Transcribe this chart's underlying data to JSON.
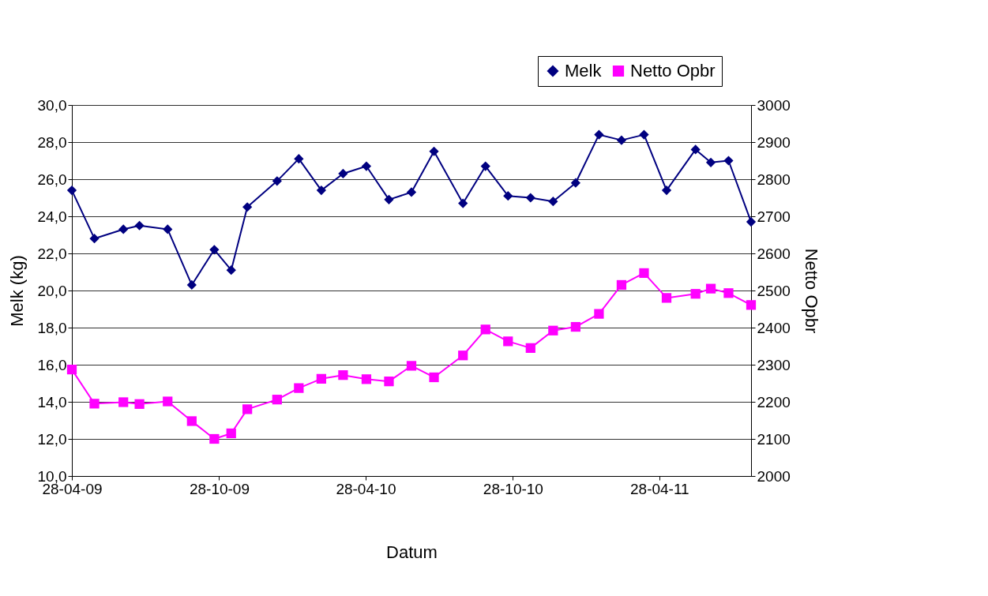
{
  "chart_data": {
    "type": "line",
    "xlabel": "Datum",
    "ylabel": "Melk (kg)",
    "y2label": "Netto Opbr",
    "x": [
      "2009-04-28",
      "2009-05-26",
      "2009-07-01",
      "2009-07-21",
      "2009-08-25",
      "2009-09-24",
      "2009-10-22",
      "2009-11-12",
      "2009-12-02",
      "2010-01-08",
      "2010-02-04",
      "2010-03-04",
      "2010-03-31",
      "2010-04-29",
      "2010-05-27",
      "2010-06-24",
      "2010-07-22",
      "2010-08-27",
      "2010-09-24",
      "2010-10-22",
      "2010-11-19",
      "2010-12-17",
      "2011-01-14",
      "2011-02-12",
      "2011-03-12",
      "2011-04-09",
      "2011-05-07",
      "2011-06-12",
      "2011-07-01",
      "2011-07-23",
      "2011-08-20"
    ],
    "series": [
      {
        "name": "Melk",
        "color": "#000080",
        "marker": "diamond",
        "values": [
          25.4,
          22.8,
          23.3,
          23.5,
          23.3,
          20.3,
          22.2,
          21.1,
          24.5,
          25.9,
          27.1,
          25.4,
          26.3,
          26.7,
          24.9,
          25.3,
          27.5,
          24.7,
          26.7,
          25.1,
          25.0,
          24.8,
          25.8,
          28.4,
          28.1,
          28.4,
          25.4,
          27.6,
          26.9,
          27.0,
          23.7
        ]
      },
      {
        "name": "Netto Opbr",
        "color": "#ff00ff",
        "marker": "square",
        "axis": "y2",
        "values": [
          2287,
          2195,
          2199,
          2194,
          2201,
          2148,
          2100,
          2115,
          2180,
          2206,
          2237,
          2262,
          2272,
          2261,
          2255,
          2297,
          2266,
          2325,
          2395,
          2363,
          2345,
          2392,
          2402,
          2437,
          2515,
          2547,
          2480,
          2491,
          2505,
          2493,
          2461
        ]
      }
    ],
    "xlim": [
      "2009-04-28",
      "2011-08-20"
    ],
    "xticks": [
      {
        "value": "2009-04-28",
        "label": "28-04-09"
      },
      {
        "value": "2009-10-28",
        "label": "28-10-09"
      },
      {
        "value": "2010-04-28",
        "label": "28-04-10"
      },
      {
        "value": "2010-10-28",
        "label": "28-10-10"
      },
      {
        "value": "2011-04-28",
        "label": "28-04-11"
      }
    ],
    "ylim": [
      10,
      30
    ],
    "yticks": [
      {
        "value": 10,
        "label": "10,0"
      },
      {
        "value": 12,
        "label": "12,0"
      },
      {
        "value": 14,
        "label": "14,0"
      },
      {
        "value": 16,
        "label": "16,0"
      },
      {
        "value": 18,
        "label": "18,0"
      },
      {
        "value": 20,
        "label": "20,0"
      },
      {
        "value": 22,
        "label": "22,0"
      },
      {
        "value": 24,
        "label": "24,0"
      },
      {
        "value": 26,
        "label": "26,0"
      },
      {
        "value": 28,
        "label": "28,0"
      },
      {
        "value": 30,
        "label": "30,0"
      }
    ],
    "y2lim": [
      2000,
      3000
    ],
    "y2ticks": [
      2000,
      2100,
      2200,
      2300,
      2400,
      2500,
      2600,
      2700,
      2800,
      2900,
      3000
    ],
    "grid": "y",
    "legend": "top right",
    "line_style": "solid"
  }
}
